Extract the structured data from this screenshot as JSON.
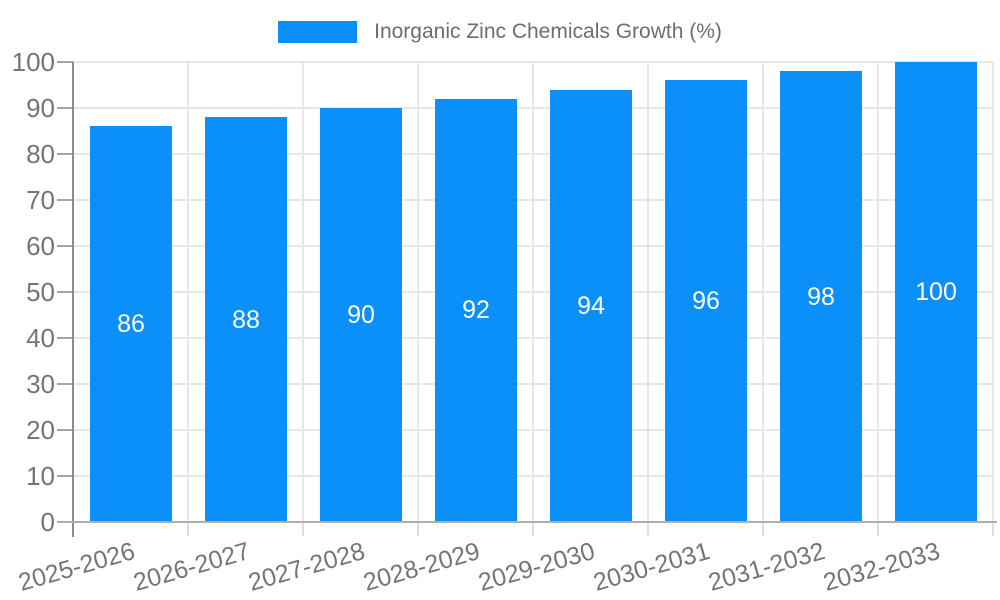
{
  "chart_data": {
    "type": "bar",
    "title": "Inorganic Zinc Chemicals Growth (%)",
    "categories": [
      "2025-2026",
      "2026-2027",
      "2027-2028",
      "2028-2029",
      "2029-2030",
      "2030-2031",
      "2031-2032",
      "2032-2033"
    ],
    "series": [
      {
        "name": "Inorganic Zinc Chemicals Growth (%)",
        "values": [
          86,
          88,
          90,
          92,
          94,
          96,
          98,
          100
        ]
      }
    ],
    "xlabel": "",
    "ylabel": "",
    "ylim": [
      0,
      100
    ],
    "ytick_step": 10,
    "grid": true,
    "legend_position": "top-center",
    "value_label_position": "inside-middle",
    "colors": {
      "bar": "#0a90f8",
      "value_label": "#ffffff",
      "axis_text": "#757575",
      "legend_text": "#6e6e6e",
      "gridline": "#e7e7e7",
      "y_axis_line": "#8c8c8c",
      "x_axis_line": "#aeaeae",
      "y_tick": "#a3a3a3",
      "x_tick": "#dedede"
    }
  }
}
